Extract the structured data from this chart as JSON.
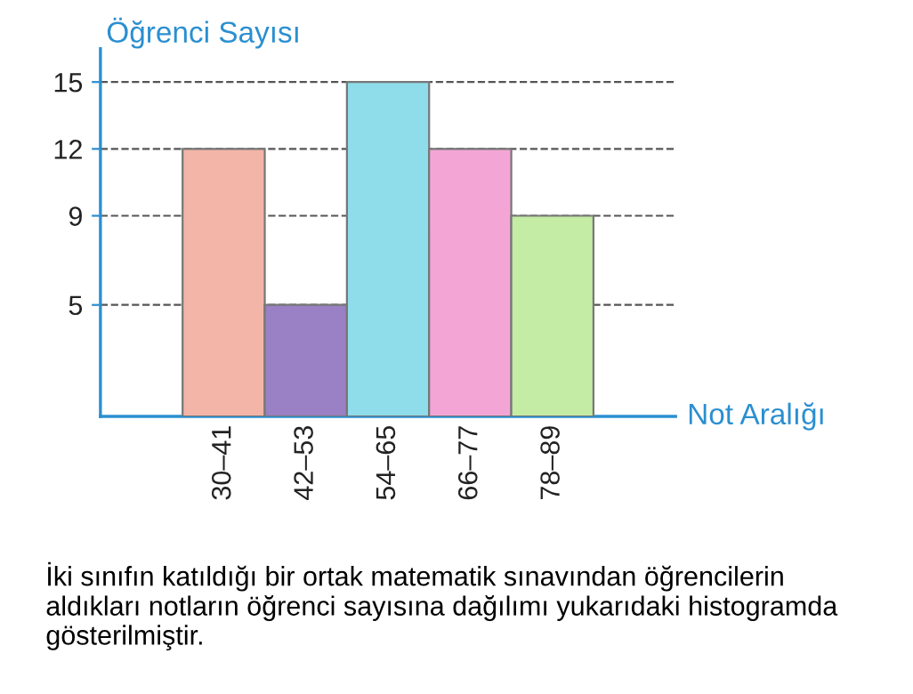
{
  "chart_data": {
    "type": "bar",
    "ylabel": "Öğrenci Sayısı",
    "xlabel": "Not Aralığı",
    "categories": [
      "30–41",
      "42–53",
      "54–65",
      "66–77",
      "78–89"
    ],
    "values": [
      12,
      5,
      15,
      12,
      9
    ],
    "colors": [
      "#f3b5a8",
      "#9a80c4",
      "#8fdcea",
      "#f3a6d6",
      "#c4eca4"
    ],
    "ylim": [
      0,
      16.5
    ],
    "yticks": [
      5,
      9,
      12,
      15
    ],
    "grid": "y",
    "annotations": [
      "İki sınıfın katıldığı bir ortak matematik sınavından öğrencilerin aldıkları notların öğrenci sayısına dağılımı yukarıdaki histogramda gösterilmiştir."
    ]
  }
}
